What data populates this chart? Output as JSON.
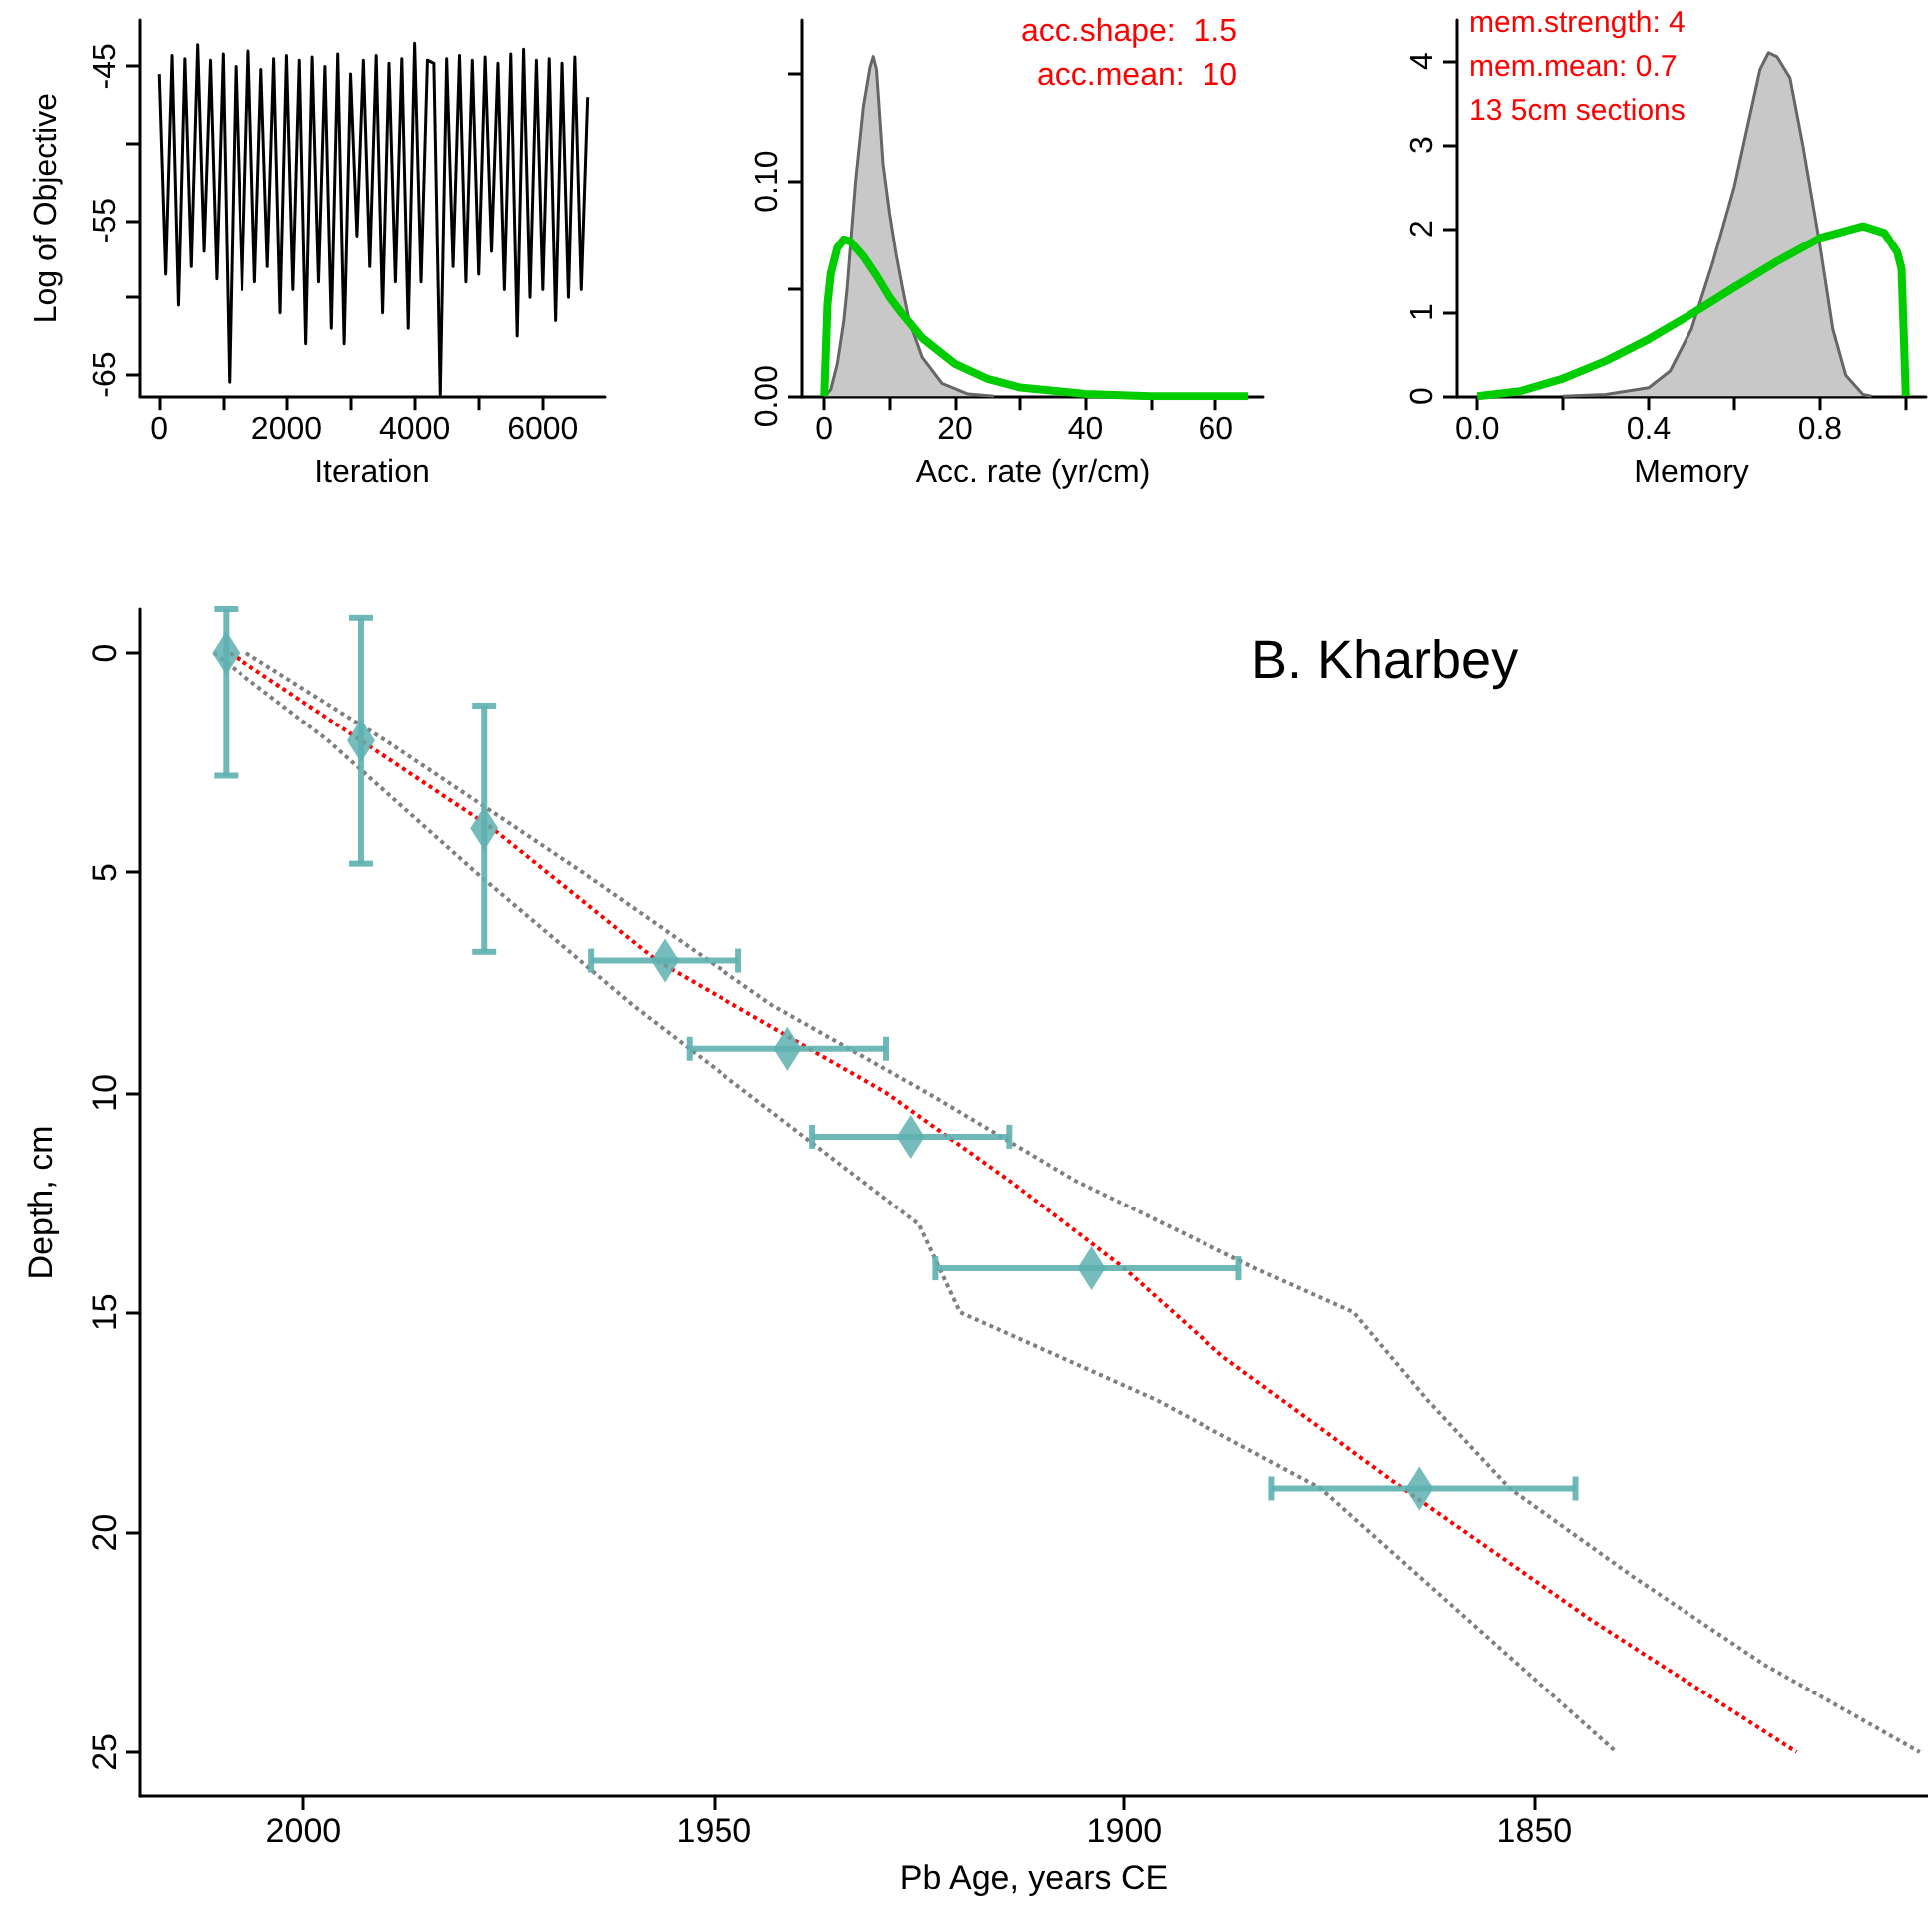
{
  "chart_data": [
    {
      "type": "line",
      "ylabel": "Log of Objective",
      "xlabel": "Iteration",
      "xlim": [
        -300,
        6970
      ],
      "ylim": [
        -66.4,
        -42
      ],
      "xticks": [
        0,
        {
          "value": 1000,
          "label": null
        },
        2000,
        {
          "value": 3000,
          "label": null
        },
        4000,
        {
          "value": 5000,
          "label": null
        },
        6000
      ],
      "yticks": [
        -45,
        {
          "value": -50,
          "label": null
        },
        -55,
        {
          "value": -60,
          "label": null
        },
        -65
      ],
      "grid": false,
      "marker": "none",
      "line_style": "solid",
      "series": [
        {
          "color": "#000000",
          "x": [
            0,
            100,
            200,
            300,
            400,
            500,
            600,
            700,
            800,
            900,
            1000,
            1100,
            1200,
            1300,
            1400,
            1500,
            1600,
            1700,
            1800,
            1900,
            2000,
            2100,
            2200,
            2300,
            2400,
            2500,
            2600,
            2700,
            2800,
            2900,
            3000,
            3100,
            3200,
            3300,
            3400,
            3500,
            3600,
            3700,
            3800,
            3900,
            4000,
            4100,
            4200,
            4300,
            4400,
            4500,
            4600,
            4700,
            4800,
            4900,
            5000,
            5100,
            5200,
            5300,
            5400,
            5500,
            5600,
            5700,
            5800,
            5900,
            6000,
            6100,
            6200,
            6300,
            6400,
            6500,
            6600,
            6700
          ],
          "values": [
            -45.5,
            -58.5,
            -44.3,
            -60.5,
            -44.5,
            -58,
            -43.6,
            -57,
            -44.6,
            -58.8,
            -44.2,
            -65.5,
            -45,
            -59.5,
            -44,
            -59,
            -45.2,
            -58,
            -44.5,
            -61,
            -44.3,
            -59.5,
            -44.6,
            -63,
            -44.4,
            -59,
            -45,
            -62,
            -44.2,
            -63,
            -45.5,
            -56,
            -44.6,
            -58,
            -44.3,
            -61,
            -44.8,
            -59,
            -44.5,
            -62,
            -43.5,
            -59,
            -44.6,
            -44.8,
            -66.3,
            -44.5,
            -58,
            -44.3,
            -59,
            -44.6,
            -58.5,
            -44.4,
            -57,
            -44.8,
            -59.5,
            -44.2,
            -62.5,
            -43.9,
            -60,
            -44.6,
            -59.5,
            -44.5,
            -61.5,
            -44.8,
            -60,
            -44.4,
            -59.5,
            -47
          ]
        }
      ]
    },
    {
      "type": "area",
      "xlabel": "Acc. rate (yr/cm)",
      "xlim": [
        -3.4,
        67.3
      ],
      "ylim": [
        0,
        0.175
      ],
      "xticks": [
        0,
        {
          "value": 10,
          "label": null
        },
        20,
        {
          "value": 30,
          "label": null
        },
        40,
        {
          "value": 50,
          "label": null
        },
        60
      ],
      "yticks": [
        {
          "value": 0,
          "label": "0.00"
        },
        {
          "value": 0.05,
          "label": null
        },
        {
          "value": 0.1,
          "label": "0.10"
        },
        {
          "value": 0.15,
          "label": null
        }
      ],
      "grid": false,
      "marker": "none",
      "line_style": "solid",
      "annotations": [
        "acc.shape:  1.5",
        "acc.mean:  10"
      ],
      "series": [
        {
          "color": "#c8c8c8",
          "x": [
            0,
            1,
            2,
            3,
            3.5,
            4.8,
            6,
            7,
            7.5,
            8,
            9,
            10,
            11,
            12,
            13,
            15,
            18,
            22,
            26
          ],
          "values": [
            0,
            0.003,
            0.015,
            0.035,
            0.05,
            0.1,
            0.135,
            0.153,
            0.158,
            0.152,
            0.108,
            0.085,
            0.066,
            0.05,
            0.035,
            0.018,
            0.006,
            0.001,
            0
          ]
        },
        {
          "type": "line",
          "color": "#00cc00",
          "x": [
            0,
            0.5,
            1,
            2,
            3,
            4,
            6,
            8,
            10,
            12,
            15,
            20,
            25,
            30,
            40,
            50,
            65
          ],
          "values": [
            0,
            0.043,
            0.057,
            0.069,
            0.073,
            0.072,
            0.065,
            0.056,
            0.046,
            0.038,
            0.027,
            0.015,
            0.008,
            0.004,
            0.001,
            0,
            0
          ]
        }
      ]
    },
    {
      "type": "area",
      "xlabel": "Memory",
      "xlim": [
        -0.047,
        1.047
      ],
      "ylim": [
        0,
        4.49
      ],
      "xticks": [
        {
          "value": 0,
          "label": "0.0"
        },
        {
          "value": 0.2,
          "label": null
        },
        0.4,
        {
          "value": 0.6,
          "label": null
        },
        0.8,
        {
          "value": 1,
          "label": null
        }
      ],
      "yticks": [
        0,
        1,
        2,
        3,
        4
      ],
      "grid": false,
      "marker": "none",
      "line_style": "solid",
      "annotations": [
        "mem.strength: 4",
        "mem.mean: 0.7",
        "13 5cm sections"
      ],
      "series": [
        {
          "color": "#c8c8c8",
          "x": [
            0.2,
            0.3,
            0.4,
            0.45,
            0.5,
            0.55,
            0.6,
            0.63,
            0.66,
            0.68,
            0.7,
            0.73,
            0.76,
            0.8,
            0.83,
            0.86,
            0.9,
            0.92
          ],
          "values": [
            0,
            0.02,
            0.1,
            0.3,
            0.8,
            1.6,
            2.5,
            3.2,
            3.9,
            4.1,
            4.05,
            3.8,
            3.0,
            1.8,
            0.8,
            0.25,
            0.02,
            0
          ]
        },
        {
          "type": "line",
          "color": "#00cc00",
          "x": [
            0,
            0.1,
            0.2,
            0.3,
            0.4,
            0.5,
            0.6,
            0.7,
            0.8,
            0.9,
            0.95,
            0.98,
            0.99,
            1
          ],
          "values": [
            0,
            0.06,
            0.21,
            0.42,
            0.68,
            0.98,
            1.3,
            1.61,
            1.89,
            2.03,
            1.95,
            1.72,
            1.52,
            0
          ]
        }
      ]
    },
    {
      "type": "line",
      "title": "B. Kharbey",
      "xlabel": "Pb Age, years CE",
      "ylabel": "Depth, cm",
      "xlim": [
        2020,
        1802
      ],
      "ylim": [
        26,
        -1
      ],
      "xticks": [
        2000,
        1950,
        1900,
        1850
      ],
      "yticks": [
        0,
        5,
        10,
        15,
        20,
        25
      ],
      "grid": false,
      "marker": "none",
      "line_style": "dotted",
      "series": [
        {
          "color": "#7f7f7f",
          "x": [
            2011,
            1997,
            1979,
            1960,
            1939,
            1925,
            1920,
            1896,
            1876,
            1858,
            1840
          ],
          "values": [
            0,
            2,
            5,
            8,
            11,
            13,
            15,
            17,
            19,
            22,
            25
          ]
        },
        {
          "color": "#7f7f7f",
          "x": [
            2007,
            1990,
            1966,
            1943,
            1924,
            1906,
            1884,
            1872,
            1863,
            1853,
            1838,
            1822,
            1803
          ],
          "values": [
            0,
            2,
            5,
            8,
            10,
            12,
            14,
            15,
            17,
            19,
            21,
            23,
            25
          ]
        },
        {
          "color": "#ff0000",
          "x": [
            2009,
            1993,
            1977,
            1957,
            1929,
            1914,
            1900,
            1888,
            1866,
            1843,
            1818
          ],
          "values": [
            0,
            2,
            4,
            7,
            10,
            12,
            14,
            16,
            19,
            22,
            25
          ]
        },
        {
          "type": "scatter",
          "marker": "diamond",
          "color": "#5eb0b0",
          "x": [
            2009.5,
            1993,
            1978,
            1956,
            1941,
            1926,
            1904,
            1864
          ],
          "values": [
            0,
            2,
            4,
            7,
            9,
            11,
            14,
            19
          ],
          "errors": [
            [
              -1,
              2.8
            ],
            [
              -0.8,
              4.8
            ],
            [
              1.2,
              6.8
            ],
            null,
            null,
            null,
            null,
            null
          ],
          "xerrors": [
            null,
            null,
            null,
            [
              1947,
              1965
            ],
            [
              1929,
              1953
            ],
            [
              1914,
              1938
            ],
            [
              1886,
              1923
            ],
            [
              1845,
              1882
            ]
          ]
        }
      ]
    }
  ]
}
